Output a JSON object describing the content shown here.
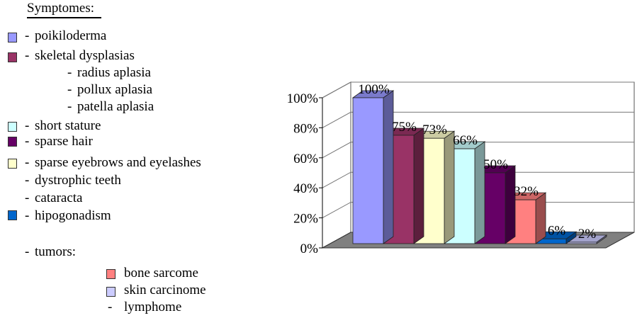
{
  "legend": {
    "title": "Symptomes:",
    "items": [
      {
        "label": "poikiloderma",
        "color": "#9999ff"
      },
      {
        "label": "skeletal dysplasias",
        "color": "#993366"
      },
      {
        "label": "radius aplasia"
      },
      {
        "label": "pollux aplasia"
      },
      {
        "label": "patella aplasia"
      },
      {
        "label": "short stature",
        "color": "#ccffff"
      },
      {
        "label": "sparse hair",
        "color": "#660066"
      },
      {
        "label": "sparse eyebrows and eyelashes",
        "color": "#ffffcc"
      },
      {
        "label": "dystrophic teeth"
      },
      {
        "label": "cataracta"
      },
      {
        "label": "hipogonadism",
        "color": "#0066cc"
      },
      {
        "label": "tumors:"
      },
      {
        "label": "bone sarcome",
        "color": "#ff8080"
      },
      {
        "label": "skin carcinome",
        "color": "#ccccff"
      },
      {
        "label": "lymphome"
      }
    ]
  },
  "chart_data": {
    "type": "bar",
    "categories": [
      "poikiloderma",
      "skeletal dysplasias",
      "sparse eyebrows and eyelashes",
      "short stature",
      "sparse hair",
      "bone sarcome",
      "hipogonadism",
      "skin carcinome"
    ],
    "values": [
      100,
      75,
      73,
      66,
      50,
      32,
      6,
      2
    ],
    "data_labels": [
      "100%",
      "75%",
      "73%",
      "66%",
      "50%",
      "32%",
      "6%",
      "2%"
    ],
    "colors": [
      "#9999ff",
      "#993366",
      "#ffffcc",
      "#ccffff",
      "#660066",
      "#ff8080",
      "#0066cc",
      "#ccccff"
    ],
    "ylim": [
      0,
      100
    ],
    "yticks": [
      "0%",
      "20%",
      "40%",
      "60%",
      "80%",
      "100%"
    ],
    "grid": true,
    "style": "3d"
  }
}
